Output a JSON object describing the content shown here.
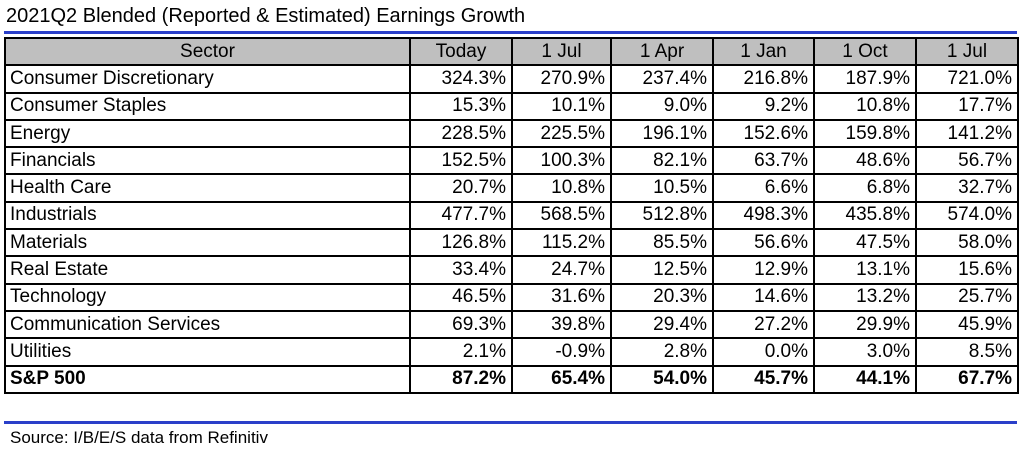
{
  "title": "2021Q2 Blended (Reported & Estimated) Earnings Growth",
  "table": {
    "headers": [
      "Sector",
      "Today",
      "1 Jul",
      "1 Apr",
      "1 Jan",
      "1 Oct",
      "1 Jul"
    ],
    "rows": [
      {
        "sector": "Consumer Discretionary",
        "values": [
          "324.3%",
          "270.9%",
          "237.4%",
          "216.8%",
          "187.9%",
          "721.0%"
        ]
      },
      {
        "sector": "Consumer Staples",
        "values": [
          "15.3%",
          "10.1%",
          "9.0%",
          "9.2%",
          "10.8%",
          "17.7%"
        ]
      },
      {
        "sector": "Energy",
        "values": [
          "228.5%",
          "225.5%",
          "196.1%",
          "152.6%",
          "159.8%",
          "141.2%"
        ]
      },
      {
        "sector": "Financials",
        "values": [
          "152.5%",
          "100.3%",
          "82.1%",
          "63.7%",
          "48.6%",
          "56.7%"
        ]
      },
      {
        "sector": "Health Care",
        "values": [
          "20.7%",
          "10.8%",
          "10.5%",
          "6.6%",
          "6.8%",
          "32.7%"
        ]
      },
      {
        "sector": "Industrials",
        "values": [
          "477.7%",
          "568.5%",
          "512.8%",
          "498.3%",
          "435.8%",
          "574.0%"
        ]
      },
      {
        "sector": "Materials",
        "values": [
          "126.8%",
          "115.2%",
          "85.5%",
          "56.6%",
          "47.5%",
          "58.0%"
        ]
      },
      {
        "sector": "Real Estate",
        "values": [
          "33.4%",
          "24.7%",
          "12.5%",
          "12.9%",
          "13.1%",
          "15.6%"
        ]
      },
      {
        "sector": "Technology",
        "values": [
          "46.5%",
          "31.6%",
          "20.3%",
          "14.6%",
          "13.2%",
          "25.7%"
        ]
      },
      {
        "sector": "Communication Services",
        "values": [
          "69.3%",
          "39.8%",
          "29.4%",
          "27.2%",
          "29.9%",
          "45.9%"
        ]
      },
      {
        "sector": "Utilities",
        "values": [
          "2.1%",
          "-0.9%",
          "2.8%",
          "0.0%",
          "3.0%",
          "8.5%"
        ]
      }
    ],
    "total": {
      "sector": "S&P 500",
      "values": [
        "87.2%",
        "65.4%",
        "54.0%",
        "45.7%",
        "44.1%",
        "67.7%"
      ]
    }
  },
  "source": "Source: I/B/E/S data from Refinitiv",
  "colors": {
    "accent_rule": "#2a3fc9",
    "header_fill": "#bfbfbf"
  }
}
